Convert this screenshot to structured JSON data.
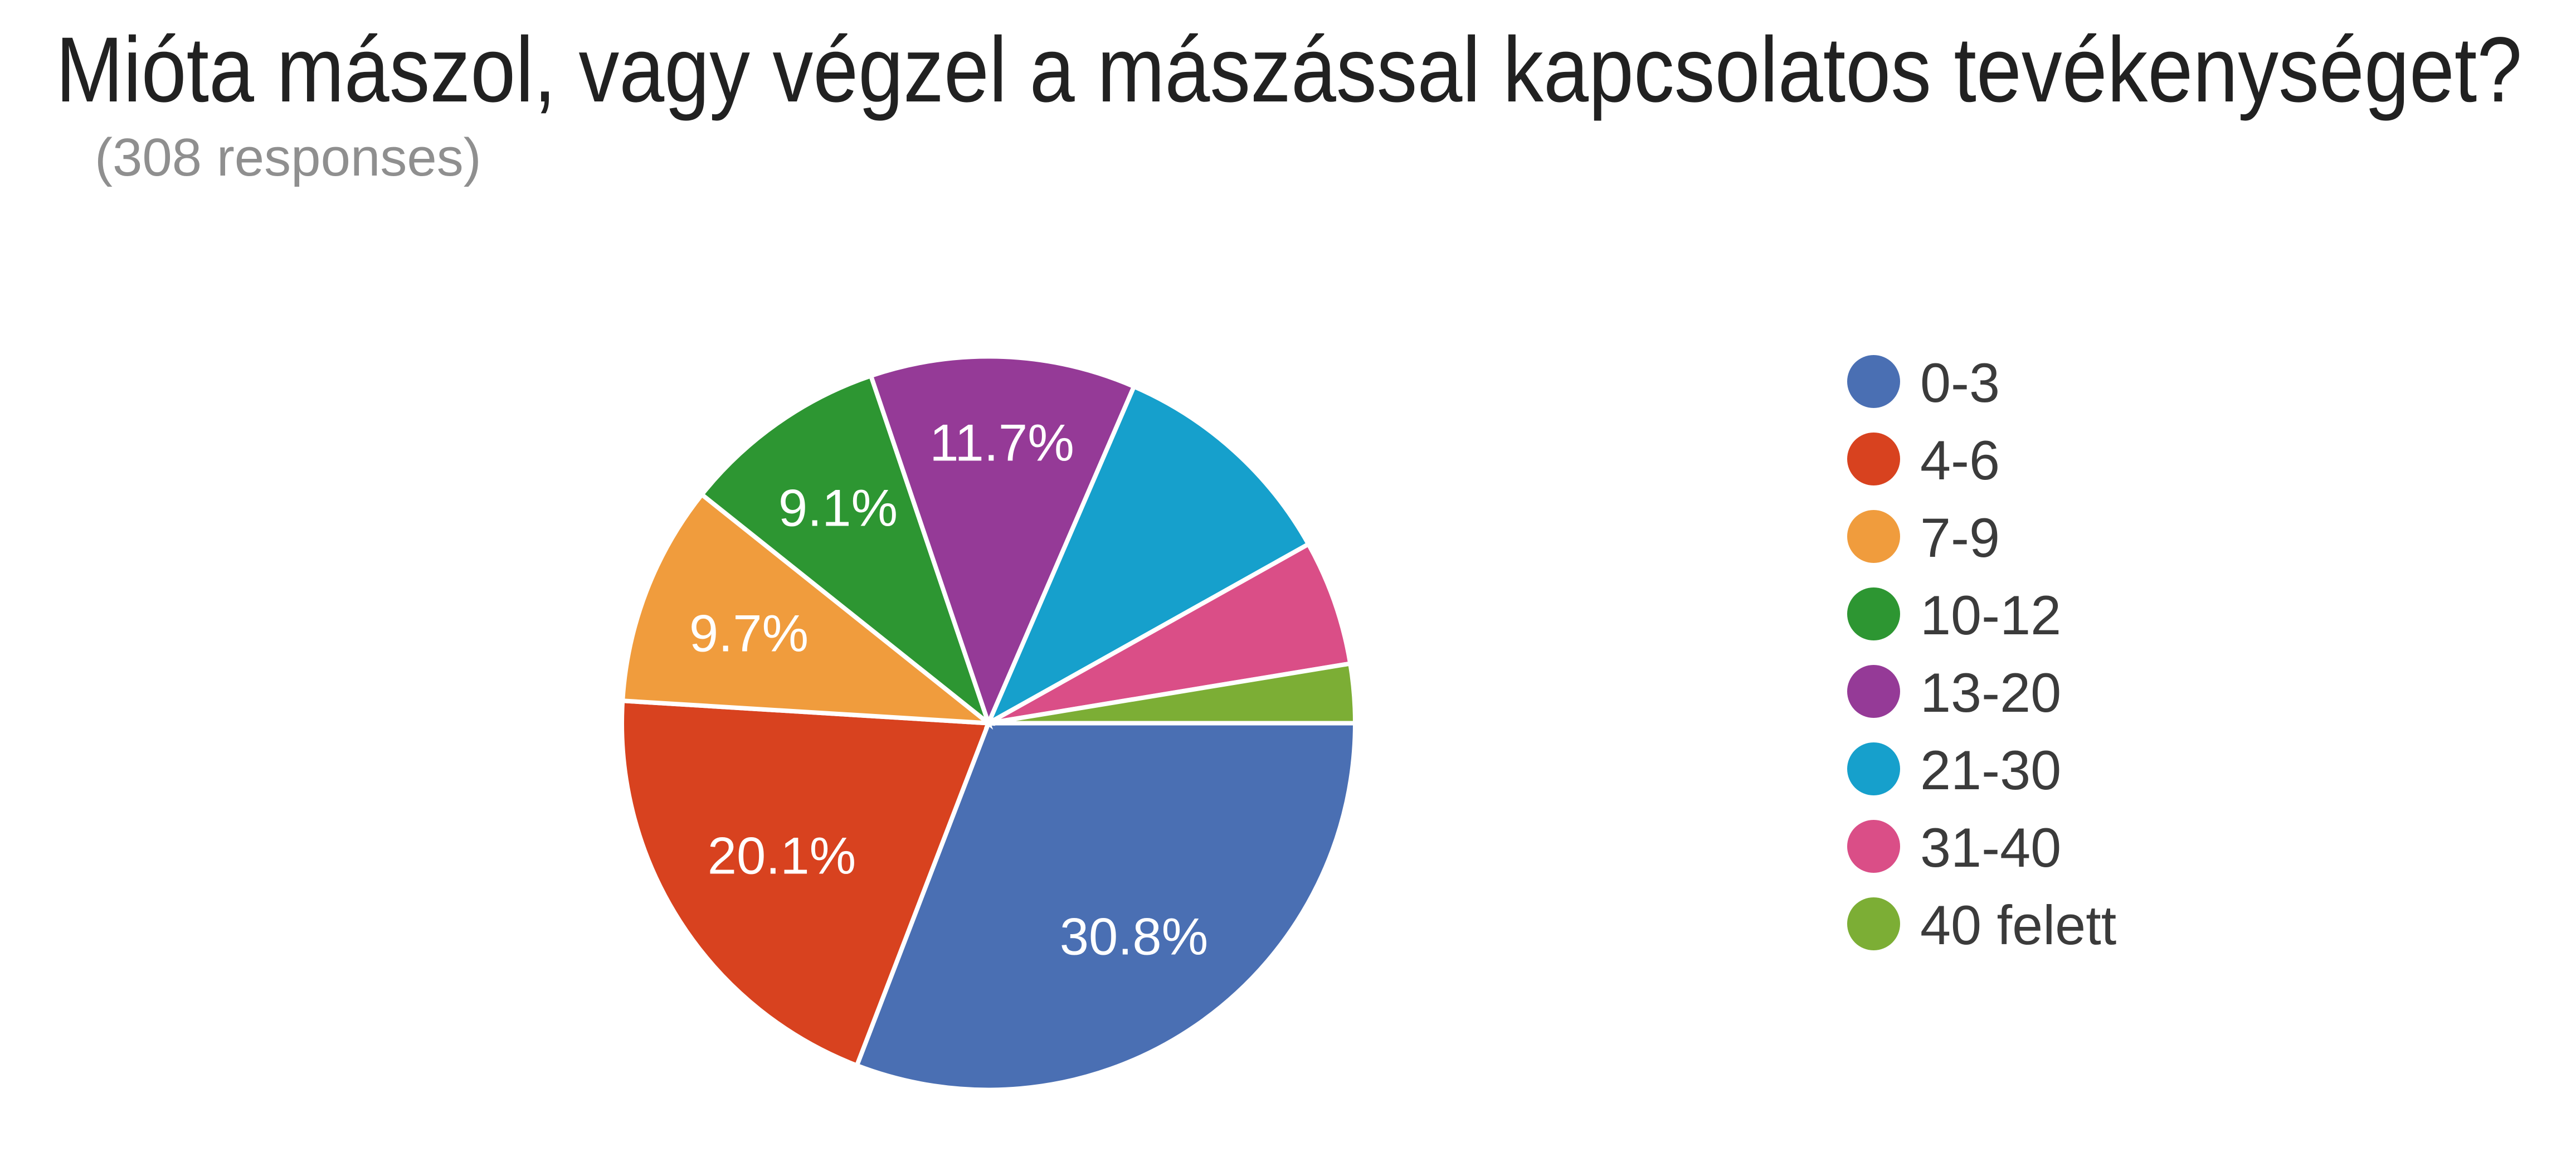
{
  "chart_data": {
    "type": "pie",
    "title": "Mióta mászol, vagy végzel a mászással kapcsolatos tevékenységet?",
    "subtitle": "(308 responses)",
    "responses_total": 308,
    "legend_position": "right",
    "background_color": "#ffffff",
    "title_color": "#212121",
    "subtitle_color": "#8f8f8f",
    "legend_text_color": "#3b3b3b",
    "slice_label_color": "#ffffff",
    "slice_border_color": "#ffffff",
    "start_angle_clockwise_from_north_deg": 90,
    "direction": "clockwise",
    "slices": [
      {
        "label": "0-3",
        "count": 95,
        "pct": 30.8,
        "pct_label": "30.8%",
        "show_pct_label": true,
        "color": "#4a6fb3",
        "label_pos": [
          2035,
          1680
        ]
      },
      {
        "label": "4-6",
        "count": 62,
        "pct": 20.1,
        "pct_label": "20.1%",
        "show_pct_label": true,
        "color": "#d8421f",
        "label_pos": [
          1403,
          1535
        ]
      },
      {
        "label": "7-9",
        "count": 30,
        "pct": 9.7,
        "pct_label": "9.7%",
        "show_pct_label": true,
        "color": "#f09c3d",
        "label_pos": [
          1344,
          1136
        ]
      },
      {
        "label": "10-12",
        "count": 28,
        "pct": 9.1,
        "pct_label": "9.1%",
        "show_pct_label": true,
        "color": "#2d9632",
        "label_pos": [
          1504,
          911
        ]
      },
      {
        "label": "13-20",
        "count": 36,
        "pct": 11.7,
        "pct_label": "11.7%",
        "show_pct_label": true,
        "color": "#953a97",
        "label_pos": [
          1798,
          794
        ]
      },
      {
        "label": "21-30",
        "count": 32,
        "pct": 10.4,
        "pct_label": "10.4%",
        "show_pct_label": false,
        "color": "#16a0cc",
        "label_pos": null
      },
      {
        "label": "31-40",
        "count": 17,
        "pct": 5.5,
        "pct_label": "5.5%",
        "show_pct_label": false,
        "color": "#da4e87",
        "label_pos": null
      },
      {
        "label": "40 felett",
        "count": 8,
        "pct": 2.6,
        "pct_label": "2.6%",
        "show_pct_label": false,
        "color": "#7cae35",
        "label_pos": null
      }
    ],
    "layout": {
      "pie_center": [
        1774,
        1297.5
      ],
      "pie_radius": 658,
      "pie_box_origin": [
        1052,
        575
      ],
      "slice_border_width": 8
    }
  }
}
